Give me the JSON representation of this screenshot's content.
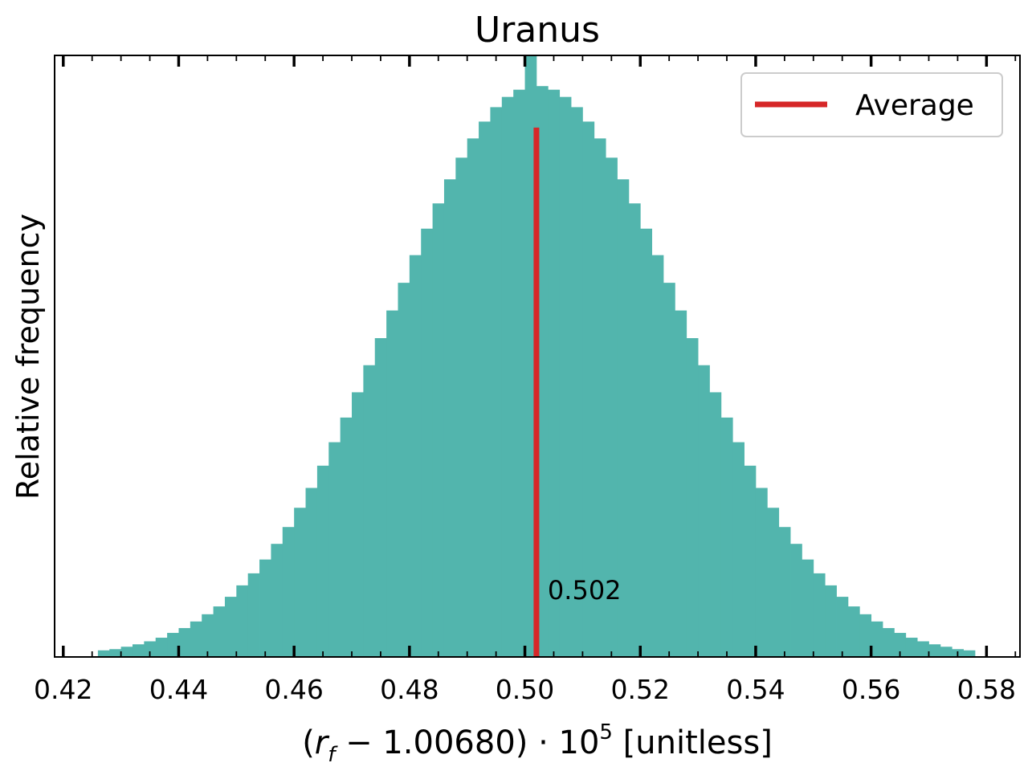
{
  "chart_data": {
    "type": "histogram",
    "title": "Uranus",
    "xlabel": [
      "(",
      "r",
      "f",
      " − 1.00680) · 10",
      "5",
      " [unitless]"
    ],
    "ylabel": "Relative frequency",
    "color": "#52b5ad",
    "bins": [
      0.426,
      0.428,
      0.43,
      0.432,
      0.434,
      0.436,
      0.438,
      0.44,
      0.442,
      0.444,
      0.446,
      0.448,
      0.45,
      0.452,
      0.454,
      0.456,
      0.458,
      0.46,
      0.462,
      0.464,
      0.466,
      0.468,
      0.47,
      0.472,
      0.474,
      0.476,
      0.478,
      0.48,
      0.482,
      0.484,
      0.486,
      0.488,
      0.49,
      0.492,
      0.494,
      0.496,
      0.498,
      0.5,
      0.502,
      0.504,
      0.506,
      0.508,
      0.51,
      0.512,
      0.514,
      0.516,
      0.518,
      0.52,
      0.522,
      0.524,
      0.526,
      0.528,
      0.53,
      0.532,
      0.534,
      0.536,
      0.538,
      0.54,
      0.542,
      0.544,
      0.546,
      0.548,
      0.55,
      0.552,
      0.554,
      0.556,
      0.558,
      0.56,
      0.562,
      0.564,
      0.566,
      0.568,
      0.57,
      0.572,
      0.574,
      0.576,
      0.578
    ],
    "values": [
      0.011,
      0.013,
      0.017,
      0.021,
      0.026,
      0.032,
      0.04,
      0.048,
      0.059,
      0.071,
      0.084,
      0.1,
      0.119,
      0.139,
      0.162,
      0.188,
      0.216,
      0.248,
      0.281,
      0.318,
      0.357,
      0.398,
      0.44,
      0.485,
      0.53,
      0.576,
      0.622,
      0.668,
      0.712,
      0.754,
      0.794,
      0.83,
      0.862,
      0.89,
      0.914,
      0.931,
      0.943,
      1.0,
      0.949,
      0.943,
      0.931,
      0.914,
      0.89,
      0.862,
      0.83,
      0.794,
      0.754,
      0.712,
      0.668,
      0.622,
      0.576,
      0.53,
      0.485,
      0.44,
      0.398,
      0.357,
      0.318,
      0.281,
      0.248,
      0.216,
      0.188,
      0.162,
      0.139,
      0.119,
      0.1,
      0.084,
      0.071,
      0.059,
      0.048,
      0.04,
      0.032,
      0.026,
      0.021,
      0.017,
      0.013,
      0.011
    ],
    "vline": {
      "name": "Average",
      "value": 0.502,
      "ymax": 0.88,
      "color": "#d62728"
    },
    "xlim": [
      0.4185,
      0.5858
    ],
    "ylim": [
      0,
      1.0
    ],
    "xticks": [
      0.42,
      0.44,
      0.46,
      0.48,
      {
        "value": 0.5,
        "label": "0.50"
      },
      0.52,
      0.54,
      0.56,
      0.58
    ],
    "xminorticks": [
      0.425,
      0.43,
      0.435,
      0.445,
      0.45,
      0.455,
      0.465,
      0.47,
      0.475,
      0.485,
      0.49,
      0.495,
      0.505,
      0.51,
      0.515,
      0.525,
      0.53,
      0.535,
      0.545,
      0.55,
      0.555,
      0.565,
      0.57,
      0.575,
      0.585
    ],
    "legend": "upper right"
  }
}
